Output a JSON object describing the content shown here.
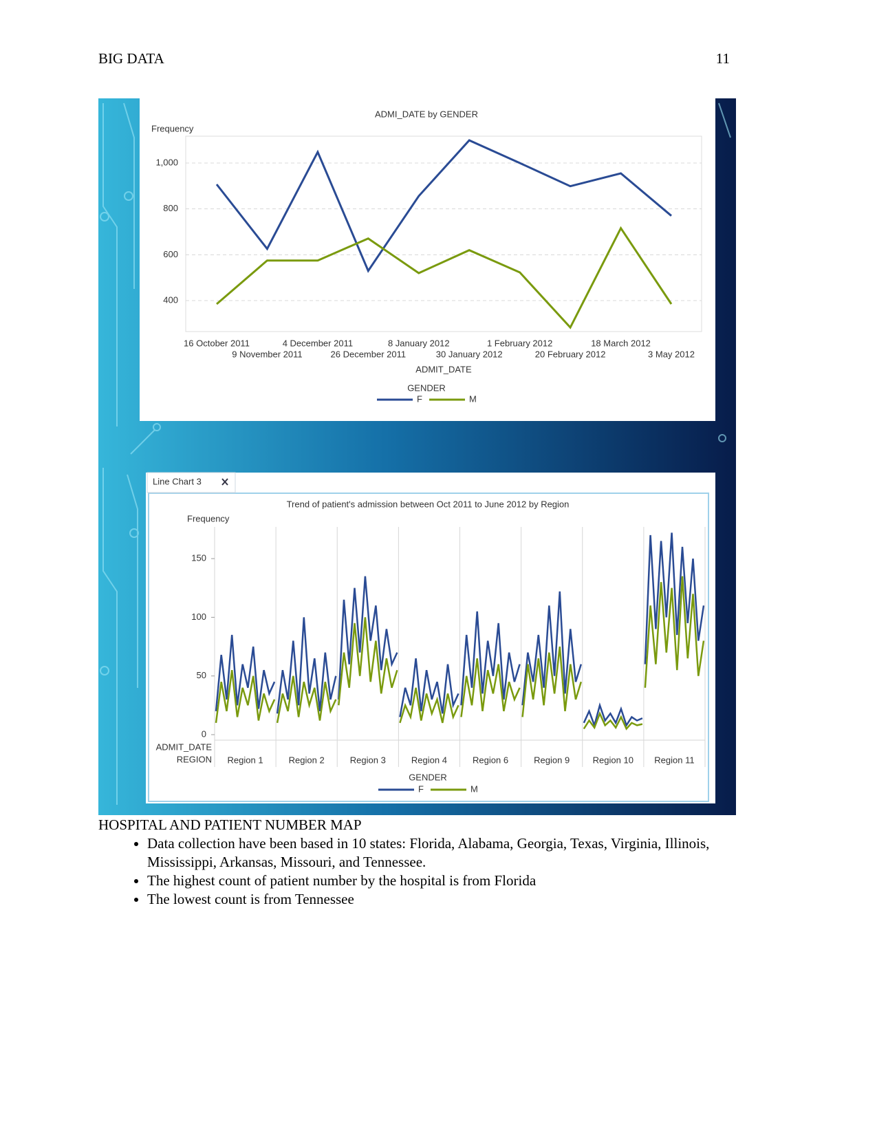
{
  "header": {
    "title": "BIG DATA",
    "page": "11"
  },
  "chart_data": [
    {
      "type": "line",
      "title": "ADMI_DATE by GENDER",
      "y_label": "Frequency",
      "x_label": "ADMIT_DATE",
      "legend_title": "GENDER",
      "categories": [
        "16 October 2011",
        "9 November 2011",
        "4 December 2011",
        "26 December 2011",
        "8 January 2012",
        "30 January 2012",
        "1 February 2012",
        "20 February 2012",
        "18 March 2012",
        "3 May 2012"
      ],
      "series": [
        {
          "name": "F",
          "color": "#2a4b94",
          "values": [
            907,
            626,
            1048,
            530,
            856,
            1099,
            1000,
            899,
            955,
            770
          ]
        },
        {
          "name": "M",
          "color": "#7a9a0e",
          "values": [
            385,
            575,
            575,
            671,
            520,
            620,
            523,
            283,
            716,
            385
          ]
        }
      ],
      "ylim": [
        265,
        1117
      ],
      "yticks": [
        400,
        600,
        800,
        {
          "value": 1000,
          "label": "1,000"
        }
      ],
      "grid": true
    },
    {
      "type": "panel-line",
      "tab": "Line Chart 3",
      "title": "Trend of patient's admission between Oct 2011 to June 2012 by Region",
      "y_label": "Frequency",
      "x_label": "ADMIT_DATE",
      "panel_label": "REGION",
      "legend_title": "GENDER",
      "categories": [
        "Region 1",
        "Region 2",
        "Region 3",
        "Region 4",
        "Region 6",
        "Region 9",
        "Region 10",
        "Region 11"
      ],
      "series": [
        {
          "name": "F",
          "color": "#2a4b94",
          "values": [
            [
              20,
              68,
              30,
              85,
              25,
              60,
              40,
              75,
              22,
              55,
              35,
              45
            ],
            [
              18,
              55,
              30,
              80,
              25,
              100,
              35,
              65,
              20,
              70,
              30,
              50
            ],
            [
              30,
              115,
              60,
              125,
              70,
              135,
              80,
              110,
              55,
              90,
              60,
              70
            ],
            [
              15,
              40,
              25,
              65,
              20,
              55,
              30,
              45,
              18,
              60,
              25,
              35
            ],
            [
              25,
              85,
              40,
              105,
              35,
              80,
              50,
              95,
              30,
              70,
              45,
              60
            ],
            [
              25,
              70,
              45,
              85,
              40,
              110,
              50,
              122,
              35,
              90,
              45,
              60
            ],
            [
              10,
              20,
              8,
              25,
              12,
              18,
              10,
              22,
              8,
              15,
              12,
              14
            ],
            [
              60,
              170,
              90,
              165,
              100,
              172,
              85,
              160,
              95,
              150,
              80,
              110
            ]
          ]
        },
        {
          "name": "M",
          "color": "#7a9a0e",
          "values": [
            [
              10,
              45,
              20,
              55,
              15,
              40,
              25,
              50,
              12,
              35,
              20,
              30
            ],
            [
              10,
              35,
              20,
              50,
              15,
              45,
              25,
              40,
              12,
              45,
              20,
              30
            ],
            [
              25,
              70,
              40,
              95,
              50,
              100,
              45,
              80,
              35,
              65,
              40,
              55
            ],
            [
              10,
              25,
              15,
              40,
              12,
              35,
              18,
              30,
              10,
              35,
              15,
              25
            ],
            [
              15,
              50,
              25,
              65,
              20,
              55,
              35,
              60,
              20,
              45,
              30,
              40
            ],
            [
              15,
              60,
              30,
              65,
              25,
              70,
              35,
              75,
              20,
              60,
              30,
              45
            ],
            [
              5,
              12,
              6,
              18,
              8,
              12,
              6,
              15,
              5,
              10,
              8,
              9
            ],
            [
              40,
              110,
              60,
              130,
              70,
              125,
              55,
              135,
              65,
              120,
              50,
              80
            ]
          ]
        }
      ],
      "ylim": [
        0,
        177
      ],
      "yticks": [
        0,
        50,
        100,
        150
      ],
      "grid": false
    }
  ],
  "section": {
    "title": "HOSPITAL AND PATIENT NUMBER MAP",
    "bullets": [
      "Data collection have been based in 10 states: Florida, Alabama, Georgia, Texas, Virginia, Illinois, Mississippi, Arkansas, Missouri, and Tennessee.",
      "The highest count of patient number by the hospital is from Florida",
      "The lowest count is from Tennessee"
    ]
  }
}
